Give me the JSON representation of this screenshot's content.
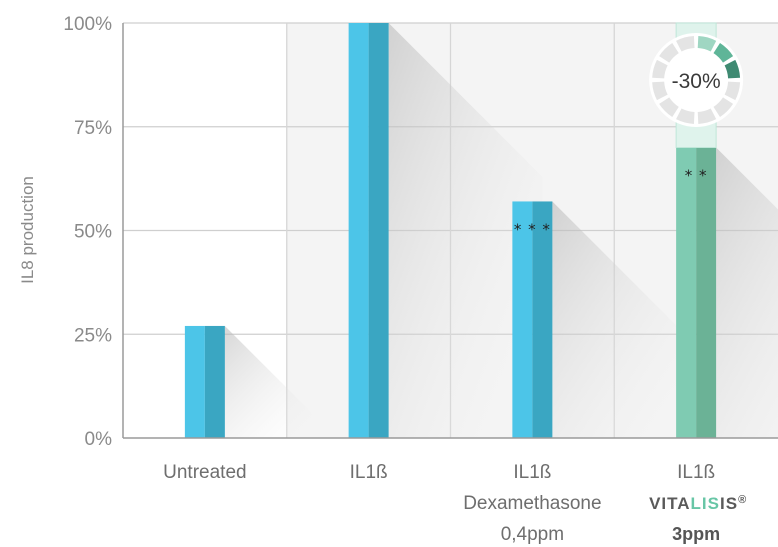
{
  "chart_data": {
    "type": "bar",
    "ylabel": "IL8 production",
    "yticks": [
      "0%",
      "25%",
      "50%",
      "75%",
      "100%"
    ],
    "ylim": [
      0,
      100
    ],
    "grid": true,
    "categories": [
      {
        "lines": [
          "Untreated"
        ]
      },
      {
        "lines": [
          "IL1ß"
        ]
      },
      {
        "lines": [
          "IL1ß",
          "Dexamethasone",
          "0,4ppm"
        ]
      },
      {
        "lines": [
          "IL1ß"
        ],
        "brand": {
          "part1": "VITA",
          "part2": "LIS",
          "part3": "IS",
          "mark": "®"
        },
        "bold_line": "3ppm"
      }
    ],
    "values": [
      27,
      100,
      57,
      70
    ],
    "significance": [
      "",
      "",
      "***",
      "**"
    ],
    "callout": {
      "text": "-30%",
      "category_index": 3
    },
    "colors": {
      "bar_light": "#4cc5e8",
      "bar_dark": "#3aa6c2",
      "bar_green_light": "#7fcbb2",
      "bar_green_dark": "#6bb296",
      "brand_dark": "#5a5a5a",
      "brand_accent": "#68c6a6",
      "badge_accent": "#3f8a72",
      "badge_mid": "#5fb598",
      "badge_light": "#9fd6c2"
    }
  }
}
